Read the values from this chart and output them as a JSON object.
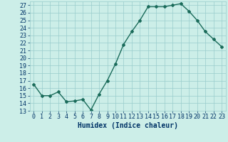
{
  "x": [
    0,
    1,
    2,
    3,
    4,
    5,
    6,
    7,
    8,
    9,
    10,
    11,
    12,
    13,
    14,
    15,
    16,
    17,
    18,
    19,
    20,
    21,
    22,
    23
  ],
  "y": [
    16.5,
    15.0,
    15.0,
    15.5,
    14.2,
    14.3,
    14.5,
    13.1,
    15.2,
    17.0,
    19.2,
    21.8,
    23.5,
    25.0,
    26.8,
    26.8,
    26.8,
    27.0,
    27.2,
    26.2,
    25.0,
    23.5,
    22.5,
    21.5
  ],
  "xlabel": "Humidex (Indice chaleur)",
  "xlim": [
    -0.5,
    23.5
  ],
  "ylim": [
    13,
    27.5
  ],
  "yticks": [
    13,
    14,
    15,
    16,
    17,
    18,
    19,
    20,
    21,
    22,
    23,
    24,
    25,
    26,
    27
  ],
  "xticks": [
    0,
    1,
    2,
    3,
    4,
    5,
    6,
    7,
    8,
    9,
    10,
    11,
    12,
    13,
    14,
    15,
    16,
    17,
    18,
    19,
    20,
    21,
    22,
    23
  ],
  "line_color": "#1a6b5a",
  "marker": "D",
  "marker_size": 2.0,
  "bg_color": "#cceee8",
  "grid_color": "#99cccc",
  "label_color": "#003366",
  "xlabel_fontsize": 7,
  "tick_fontsize": 6,
  "line_width": 1.0
}
